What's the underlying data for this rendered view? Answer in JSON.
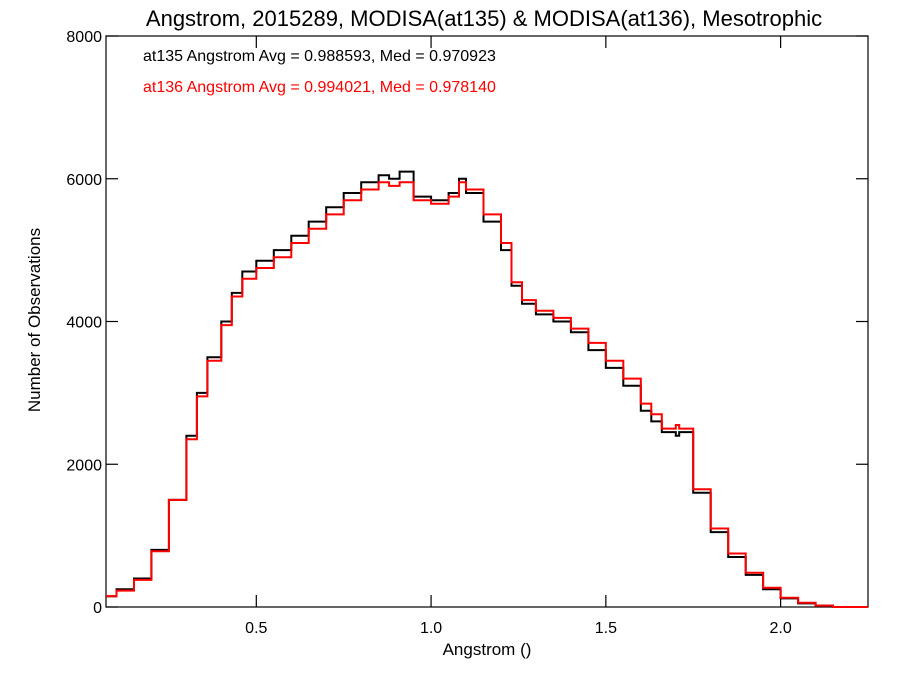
{
  "chart_data": {
    "type": "line",
    "title": "Angstrom, 2015289, MODISA(at135) & MODISA(at136), Mesotrophic",
    "xlabel": "Angstrom ()",
    "ylabel": "Number of Observations",
    "xlim": [
      0.07,
      2.25
    ],
    "ylim": [
      0,
      8000
    ],
    "x_ticks": [
      {
        "value": 0.5,
        "label": "0.5"
      },
      {
        "value": 1.0,
        "label": "1.0"
      },
      {
        "value": 1.5,
        "label": "1.5"
      },
      {
        "value": 2.0,
        "label": "2.0"
      }
    ],
    "y_ticks": [
      {
        "value": 0,
        "label": "0"
      },
      {
        "value": 2000,
        "label": "2000"
      },
      {
        "value": 4000,
        "label": "4000"
      },
      {
        "value": 6000,
        "label": "6000"
      },
      {
        "value": 8000,
        "label": "8000"
      }
    ],
    "grid": false,
    "legend_position": "top-left",
    "annotations": [
      {
        "text": "at135 Angstrom Avg = 0.988593, Med = 0.970923",
        "color": "#000000"
      },
      {
        "text": "at136 Angstrom Avg = 0.994021, Med = 0.978140",
        "color": "#ff0000"
      }
    ],
    "series": [
      {
        "color": "#000000",
        "x": [
          0.07,
          0.1,
          0.15,
          0.2,
          0.25,
          0.3,
          0.33,
          0.36,
          0.4,
          0.43,
          0.46,
          0.5,
          0.55,
          0.6,
          0.65,
          0.7,
          0.75,
          0.8,
          0.85,
          0.88,
          0.91,
          0.95,
          1.0,
          1.05,
          1.08,
          1.1,
          1.15,
          1.2,
          1.23,
          1.26,
          1.3,
          1.35,
          1.4,
          1.45,
          1.5,
          1.55,
          1.6,
          1.63,
          1.66,
          1.7,
          1.71,
          1.75,
          1.8,
          1.85,
          1.9,
          1.95,
          2.0,
          2.05,
          2.1,
          2.15,
          2.25
        ],
        "y": [
          150,
          250,
          400,
          800,
          1500,
          2400,
          3000,
          3500,
          4000,
          4400,
          4700,
          4850,
          5000,
          5200,
          5400,
          5600,
          5800,
          5950,
          6050,
          6000,
          6100,
          5750,
          5700,
          5800,
          6000,
          5800,
          5400,
          5000,
          4500,
          4250,
          4100,
          4000,
          3850,
          3600,
          3350,
          3100,
          2750,
          2600,
          2450,
          2400,
          2450,
          1600,
          1050,
          700,
          450,
          250,
          120,
          50,
          20,
          0,
          0
        ]
      },
      {
        "color": "#ff0000",
        "x": [
          0.07,
          0.1,
          0.15,
          0.2,
          0.25,
          0.3,
          0.33,
          0.36,
          0.4,
          0.43,
          0.46,
          0.5,
          0.55,
          0.6,
          0.65,
          0.7,
          0.75,
          0.8,
          0.85,
          0.88,
          0.91,
          0.95,
          1.0,
          1.05,
          1.08,
          1.1,
          1.15,
          1.2,
          1.23,
          1.26,
          1.3,
          1.35,
          1.4,
          1.45,
          1.5,
          1.55,
          1.6,
          1.63,
          1.66,
          1.7,
          1.71,
          1.75,
          1.8,
          1.85,
          1.9,
          1.95,
          2.0,
          2.05,
          2.1,
          2.15,
          2.25
        ],
        "y": [
          150,
          230,
          380,
          780,
          1500,
          2350,
          2950,
          3450,
          3950,
          4350,
          4600,
          4750,
          4900,
          5100,
          5300,
          5500,
          5700,
          5850,
          5950,
          5900,
          5950,
          5700,
          5650,
          5750,
          5950,
          5850,
          5500,
          5100,
          4550,
          4300,
          4150,
          4050,
          3900,
          3700,
          3450,
          3200,
          2850,
          2700,
          2500,
          2550,
          2500,
          1650,
          1100,
          750,
          480,
          270,
          130,
          60,
          20,
          0,
          0
        ]
      }
    ]
  }
}
